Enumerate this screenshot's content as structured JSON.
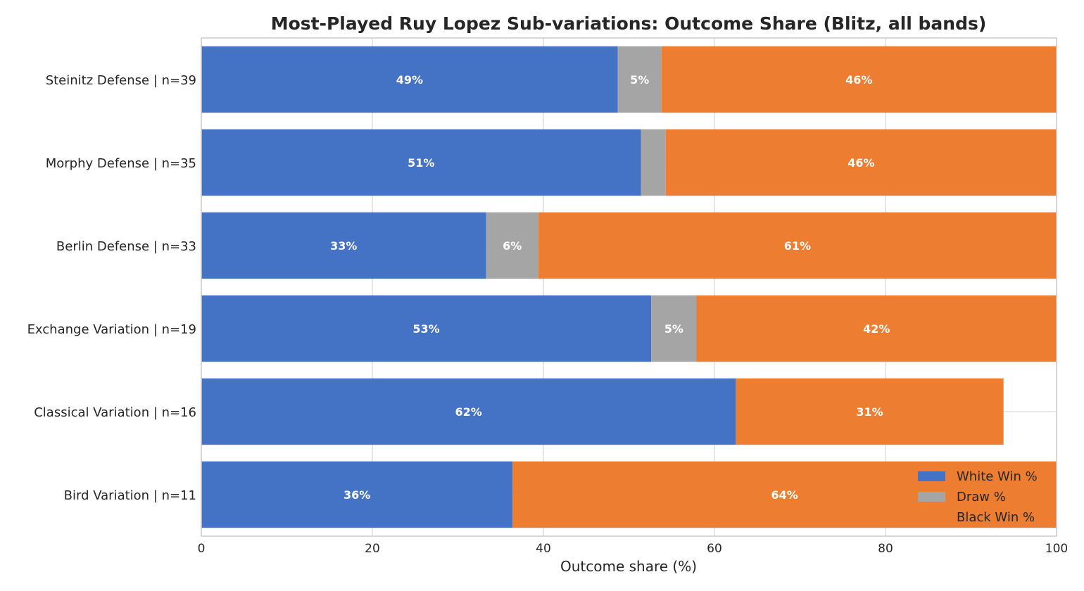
{
  "chart_data": {
    "type": "bar",
    "orientation": "horizontal",
    "stacked": true,
    "title": "Most-Played Ruy Lopez Sub-variations: Outcome Share (Blitz, all bands)",
    "xlabel": "Outcome share (%)",
    "ylabel": "",
    "xlim": [
      0,
      100
    ],
    "xticks": [
      0,
      20,
      40,
      60,
      80,
      100
    ],
    "grid": true,
    "legend_position": "bottom-right",
    "categories": [
      "Steinitz Defense | n=39",
      "Morphy Defense | n=35",
      "Berlin Defense | n=33",
      "Exchange Variation | n=19",
      "Classical Variation | n=16",
      "Bird Variation | n=11"
    ],
    "series": [
      {
        "name": "White Win %",
        "color": "#4472c4",
        "values": [
          48.7,
          51.4,
          33.3,
          52.6,
          62.5,
          36.4
        ],
        "labels": [
          "49%",
          "51%",
          "33%",
          "53%",
          "62%",
          "36%"
        ]
      },
      {
        "name": "Draw %",
        "color": "#a5a5a5",
        "values": [
          5.1,
          2.9,
          6.1,
          5.3,
          0,
          0
        ],
        "labels": [
          "5%",
          "",
          "6%",
          "5%",
          "",
          ""
        ]
      },
      {
        "name": "Black Win %",
        "color": "#ed7d31",
        "values": [
          46.2,
          45.7,
          60.6,
          42.1,
          31.3,
          63.6
        ],
        "labels": [
          "46%",
          "46%",
          "61%",
          "42%",
          "31%",
          "64%"
        ]
      }
    ]
  }
}
